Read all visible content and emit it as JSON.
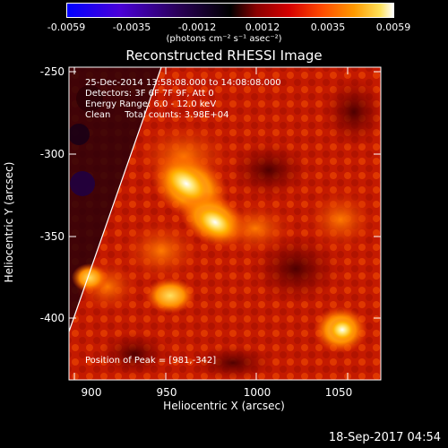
{
  "colorbar": {
    "ticks": [
      "-0.0059",
      "-0.0035",
      "-0.0012",
      "0.0012",
      "0.0035",
      "0.0059"
    ],
    "unit_label": "(photons cm⁻² s⁻¹ asec⁻²)"
  },
  "title": "Reconstructed RHESSI Image",
  "annotations": {
    "time_range": "25-Dec-2014 13:58:08.000 to 14:08:08.000",
    "detectors": "Detectors: 3F 6F 7F 9F, Att 0",
    "energy_range": "Energy Range: 6.0 - 12.0 keV",
    "method_counts": "Clean     Total counts: 3.98E+04",
    "peak_position": "Position of Peak = [981,-342]"
  },
  "x_axis": {
    "label": "Heliocentric X (arcsec)",
    "ticks": [
      "900",
      "950",
      "1000",
      "1050"
    ]
  },
  "y_axis": {
    "label": "Heliocentric Y (arcsec)",
    "ticks": [
      "-250",
      "-300",
      "-350",
      "-400"
    ]
  },
  "footer_date": "18-Sep-2017 04:54"
}
